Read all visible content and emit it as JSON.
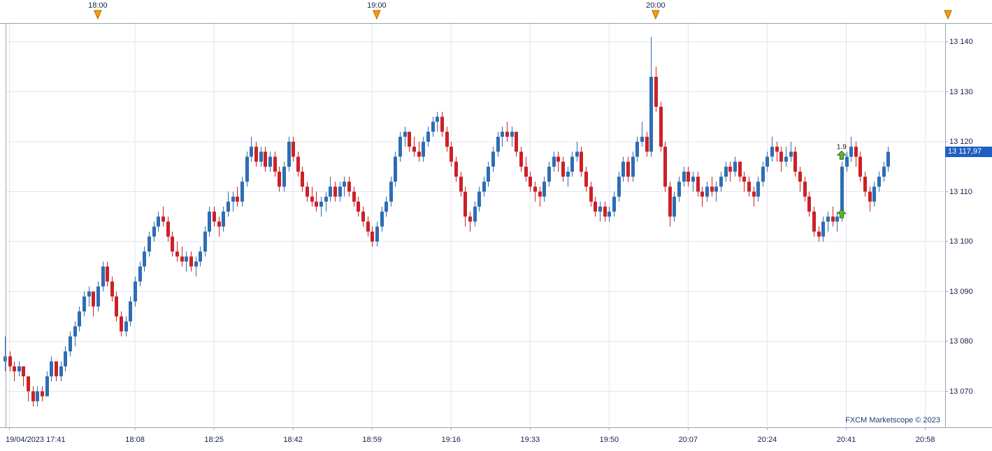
{
  "watermark": "FXCM Marketscope © 2023",
  "chart_data": {
    "type": "candlestick",
    "date": "19/04/2023",
    "start_time": "17:40",
    "interval_minutes": 1,
    "last_price": 13117.97,
    "last_price_label": "13 117,97",
    "price_axis": {
      "min": 13070,
      "max": 13140,
      "step": 10,
      "values": [
        13140,
        13130,
        13120,
        13110,
        13100,
        13090,
        13080,
        13070
      ],
      "labels": [
        "13 140",
        "13 130",
        "13 120",
        "13 110",
        "13 100",
        "13 090",
        "13 080",
        "13 070"
      ]
    },
    "top_time_ticks": [
      {
        "label": "18:00",
        "index": 20
      },
      {
        "label": "19:00",
        "index": 80
      },
      {
        "label": "20:00",
        "index": 140
      }
    ],
    "corner_session_marker": true,
    "bottom_time_ticks": [
      {
        "label": "19/04/2023 17:41",
        "index": 1
      },
      {
        "label": "18:08",
        "index": 28
      },
      {
        "label": "18:25",
        "index": 45
      },
      {
        "label": "18:42",
        "index": 62
      },
      {
        "label": "18:59",
        "index": 79
      },
      {
        "label": "19:16",
        "index": 96
      },
      {
        "label": "19:33",
        "index": 113
      },
      {
        "label": "19:50",
        "index": 130
      },
      {
        "label": "20:07",
        "index": 147
      },
      {
        "label": "20:24",
        "index": 164
      },
      {
        "label": "20:41",
        "index": 181
      },
      {
        "label": "20:58",
        "index": 198
      }
    ],
    "trade_markers": [
      {
        "index": 180,
        "price": 13117.3,
        "label": "1.9",
        "direction": "up"
      },
      {
        "index": 180,
        "price": 13105.6,
        "label": "",
        "direction": "up"
      }
    ],
    "colors": {
      "up": "#2e6db4",
      "down": "#cc2126",
      "grid": "#e3e5ee",
      "frame": "#9aa2b1",
      "axis_text": "#15234a",
      "session_marker": "#ff9c00",
      "session_marker_border": "#a96800",
      "trade_marker": "#5fb63a",
      "trade_marker_border": "#2c6e14",
      "price_label_bg": "#1e5fc1"
    },
    "candles": [
      [
        13076,
        13081,
        13074,
        13077
      ],
      [
        13077,
        13078,
        13074,
        13075
      ],
      [
        13075,
        13076,
        13072,
        13074
      ],
      [
        13074,
        13076,
        13073,
        13075
      ],
      [
        13075,
        13075,
        13071,
        13073
      ],
      [
        13073,
        13073,
        13068,
        13070
      ],
      [
        13070,
        13071,
        13067,
        13068
      ],
      [
        13068,
        13071,
        13067,
        13070
      ],
      [
        13070,
        13071,
        13068,
        13069
      ],
      [
        13069,
        13074,
        13069,
        13073
      ],
      [
        13073,
        13077,
        13072,
        13076
      ],
      [
        13076,
        13076,
        13072,
        13073
      ],
      [
        13073,
        13076,
        13072,
        13075
      ],
      [
        13075,
        13079,
        13074,
        13078
      ],
      [
        13078,
        13082,
        13077,
        13081
      ],
      [
        13081,
        13084,
        13079,
        13083
      ],
      [
        13083,
        13087,
        13082,
        13086
      ],
      [
        13086,
        13090,
        13085,
        13089
      ],
      [
        13089,
        13091,
        13087,
        13090
      ],
      [
        13090,
        13090,
        13085,
        13087
      ],
      [
        13087,
        13092,
        13086,
        13091
      ],
      [
        13091,
        13096,
        13090,
        13095
      ],
      [
        13095,
        13096,
        13091,
        13092
      ],
      [
        13092,
        13093,
        13088,
        13089
      ],
      [
        13089,
        13090,
        13084,
        13085
      ],
      [
        13085,
        13086,
        13081,
        13082
      ],
      [
        13082,
        13085,
        13081,
        13084
      ],
      [
        13084,
        13089,
        13083,
        13088
      ],
      [
        13088,
        13093,
        13087,
        13092
      ],
      [
        13092,
        13096,
        13091,
        13095
      ],
      [
        13095,
        13099,
        13094,
        13098
      ],
      [
        13098,
        13102,
        13097,
        13101
      ],
      [
        13101,
        13104,
        13100,
        13103
      ],
      [
        13103,
        13106,
        13102,
        13105
      ],
      [
        13105,
        13107,
        13103,
        13104
      ],
      [
        13104,
        13105,
        13100,
        13101
      ],
      [
        13101,
        13102,
        13097,
        13098
      ],
      [
        13098,
        13100,
        13096,
        13097
      ],
      [
        13097,
        13099,
        13095,
        13096
      ],
      [
        13096,
        13098,
        13094,
        13097
      ],
      [
        13097,
        13098,
        13094,
        13095
      ],
      [
        13095,
        13097,
        13093,
        13096
      ],
      [
        13096,
        13099,
        13095,
        13098
      ],
      [
        13098,
        13103,
        13097,
        13102
      ],
      [
        13102,
        13107,
        13101,
        13106
      ],
      [
        13106,
        13107,
        13103,
        13104
      ],
      [
        13104,
        13105,
        13101,
        13103
      ],
      [
        13103,
        13107,
        13102,
        13106
      ],
      [
        13106,
        13110,
        13105,
        13108
      ],
      [
        13108,
        13110,
        13106,
        13109
      ],
      [
        13109,
        13111,
        13107,
        13108
      ],
      [
        13108,
        13113,
        13107,
        13112
      ],
      [
        13112,
        13118,
        13111,
        13117
      ],
      [
        13117,
        13121,
        13116,
        13119
      ],
      [
        13119,
        13120,
        13115,
        13116
      ],
      [
        13116,
        13119,
        13115,
        13118
      ],
      [
        13118,
        13119,
        13114,
        13115
      ],
      [
        13115,
        13118,
        13114,
        13117
      ],
      [
        13117,
        13118,
        13113,
        13114
      ],
      [
        13114,
        13115,
        13110,
        13111
      ],
      [
        13111,
        13116,
        13110,
        13115
      ],
      [
        13115,
        13121,
        13114,
        13120
      ],
      [
        13120,
        13121,
        13116,
        13117
      ],
      [
        13117,
        13118,
        13113,
        13114
      ],
      [
        13114,
        13115,
        13110,
        13111
      ],
      [
        13111,
        13112,
        13108,
        13109
      ],
      [
        13109,
        13111,
        13107,
        13108
      ],
      [
        13108,
        13110,
        13106,
        13107
      ],
      [
        13107,
        13109,
        13105,
        13108
      ],
      [
        13108,
        13110,
        13106,
        13109
      ],
      [
        13109,
        13113,
        13108,
        13111
      ],
      [
        13111,
        13112,
        13108,
        13109
      ],
      [
        13109,
        13112,
        13108,
        13111
      ],
      [
        13111,
        13113,
        13109,
        13112
      ],
      [
        13112,
        13113,
        13109,
        13110
      ],
      [
        13110,
        13111,
        13107,
        13108
      ],
      [
        13108,
        13109,
        13105,
        13106
      ],
      [
        13106,
        13107,
        13103,
        13104
      ],
      [
        13104,
        13105,
        13101,
        13102
      ],
      [
        13102,
        13103,
        13099,
        13100
      ],
      [
        13100,
        13104,
        13099,
        13103
      ],
      [
        13103,
        13107,
        13102,
        13106
      ],
      [
        13106,
        13109,
        13105,
        13108
      ],
      [
        13108,
        13113,
        13107,
        13112
      ],
      [
        13112,
        13118,
        13111,
        13117
      ],
      [
        13117,
        13122,
        13116,
        13121
      ],
      [
        13121,
        13123,
        13119,
        13122
      ],
      [
        13122,
        13122,
        13118,
        13119
      ],
      [
        13119,
        13121,
        13117,
        13118
      ],
      [
        13118,
        13120,
        13116,
        13117
      ],
      [
        13117,
        13121,
        13116,
        13120
      ],
      [
        13120,
        13123,
        13119,
        13122
      ],
      [
        13122,
        13125,
        13121,
        13124
      ],
      [
        13124,
        13126,
        13122,
        13125
      ],
      [
        13125,
        13126,
        13121,
        13122
      ],
      [
        13122,
        13123,
        13118,
        13119
      ],
      [
        13119,
        13120,
        13115,
        13116
      ],
      [
        13116,
        13117,
        13112,
        13113
      ],
      [
        13113,
        13114,
        13109,
        13110
      ],
      [
        13110,
        13111,
        13103,
        13105
      ],
      [
        13105,
        13106,
        13102,
        13104
      ],
      [
        13104,
        13108,
        13103,
        13107
      ],
      [
        13107,
        13111,
        13106,
        13110
      ],
      [
        13110,
        13113,
        13109,
        13112
      ],
      [
        13112,
        13116,
        13111,
        13115
      ],
      [
        13115,
        13119,
        13114,
        13118
      ],
      [
        13118,
        13122,
        13117,
        13121
      ],
      [
        13121,
        13123,
        13119,
        13122
      ],
      [
        13122,
        13124,
        13120,
        13121
      ],
      [
        13121,
        13123,
        13119,
        13122
      ],
      [
        13122,
        13122,
        13117,
        13118
      ],
      [
        13118,
        13119,
        13114,
        13115
      ],
      [
        13115,
        13117,
        13112,
        13113
      ],
      [
        13113,
        13114,
        13110,
        13111
      ],
      [
        13111,
        13112,
        13108,
        13110
      ],
      [
        13110,
        13111,
        13107,
        13109
      ],
      [
        13109,
        13113,
        13108,
        13112
      ],
      [
        13112,
        13116,
        13111,
        13115
      ],
      [
        13115,
        13118,
        13114,
        13117
      ],
      [
        13117,
        13118,
        13114,
        13116
      ],
      [
        13116,
        13117,
        13112,
        13113
      ],
      [
        13113,
        13115,
        13111,
        13114
      ],
      [
        13114,
        13118,
        13113,
        13117
      ],
      [
        13117,
        13120,
        13116,
        13118
      ],
      [
        13118,
        13119,
        13113,
        13114
      ],
      [
        13114,
        13115,
        13110,
        13111
      ],
      [
        13111,
        13112,
        13107,
        13108
      ],
      [
        13108,
        13109,
        13105,
        13106
      ],
      [
        13106,
        13108,
        13104,
        13107
      ],
      [
        13107,
        13108,
        13104,
        13105
      ],
      [
        13105,
        13107,
        13104,
        13106
      ],
      [
        13106,
        13110,
        13105,
        13109
      ],
      [
        13109,
        13114,
        13108,
        13113
      ],
      [
        13113,
        13117,
        13112,
        13116
      ],
      [
        13116,
        13117,
        13112,
        13113
      ],
      [
        13113,
        13118,
        13112,
        13117
      ],
      [
        13117,
        13121,
        13116,
        13120
      ],
      [
        13120,
        13124,
        13119,
        13121
      ],
      [
        13121,
        13122,
        13117,
        13118
      ],
      [
        13118,
        13141,
        13117,
        13133
      ],
      [
        13133,
        13135,
        13126,
        13127
      ],
      [
        13127,
        13128,
        13118,
        13119
      ],
      [
        13119,
        13120,
        13110,
        13111
      ],
      [
        13111,
        13112,
        13103,
        13105
      ],
      [
        13105,
        13110,
        13104,
        13109
      ],
      [
        13109,
        13113,
        13108,
        13112
      ],
      [
        13112,
        13115,
        13111,
        13114
      ],
      [
        13114,
        13115,
        13111,
        13112
      ],
      [
        13112,
        13114,
        13110,
        13113
      ],
      [
        13113,
        13114,
        13109,
        13110
      ],
      [
        13110,
        13111,
        13107,
        13109
      ],
      [
        13109,
        13112,
        13108,
        13111
      ],
      [
        13111,
        13113,
        13109,
        13110
      ],
      [
        13110,
        13112,
        13108,
        13111
      ],
      [
        13111,
        13114,
        13110,
        13113
      ],
      [
        13113,
        13116,
        13112,
        13115
      ],
      [
        13115,
        13116,
        13112,
        13114
      ],
      [
        13114,
        13117,
        13113,
        13116
      ],
      [
        13116,
        13116,
        13112,
        13113
      ],
      [
        13113,
        13114,
        13110,
        13112
      ],
      [
        13112,
        13113,
        13109,
        13110
      ],
      [
        13110,
        13111,
        13107,
        13109
      ],
      [
        13109,
        13113,
        13108,
        13112
      ],
      [
        13112,
        13116,
        13111,
        13115
      ],
      [
        13115,
        13118,
        13114,
        13117
      ],
      [
        13117,
        13121,
        13116,
        13119
      ],
      [
        13119,
        13120,
        13116,
        13118
      ],
      [
        13118,
        13119,
        13114,
        13116
      ],
      [
        13116,
        13119,
        13115,
        13117
      ],
      [
        13117,
        13120,
        13116,
        13118
      ],
      [
        13118,
        13119,
        13113,
        13114
      ],
      [
        13114,
        13115,
        13110,
        13112
      ],
      [
        13112,
        13113,
        13108,
        13109
      ],
      [
        13109,
        13110,
        13105,
        13106
      ],
      [
        13106,
        13107,
        13101,
        13102
      ],
      [
        13102,
        13103,
        13100,
        13101
      ],
      [
        13101,
        13105,
        13100,
        13104
      ],
      [
        13104,
        13106,
        13102,
        13105
      ],
      [
        13105,
        13107,
        13103,
        13104
      ],
      [
        13104,
        13106,
        13102,
        13105
      ],
      [
        13105,
        13116,
        13104,
        13115
      ],
      [
        13115,
        13118,
        13114,
        13117
      ],
      [
        13117,
        13121,
        13116,
        13119
      ],
      [
        13119,
        13120,
        13115,
        13117
      ],
      [
        13117,
        13118,
        13112,
        13113
      ],
      [
        13113,
        13114,
        13109,
        13110
      ],
      [
        13110,
        13111,
        13106,
        13108
      ],
      [
        13108,
        13112,
        13107,
        13111
      ],
      [
        13111,
        13114,
        13110,
        13113
      ],
      [
        13113,
        13116,
        13112,
        13115
      ],
      [
        13115,
        13119,
        13114,
        13117.97
      ]
    ]
  }
}
